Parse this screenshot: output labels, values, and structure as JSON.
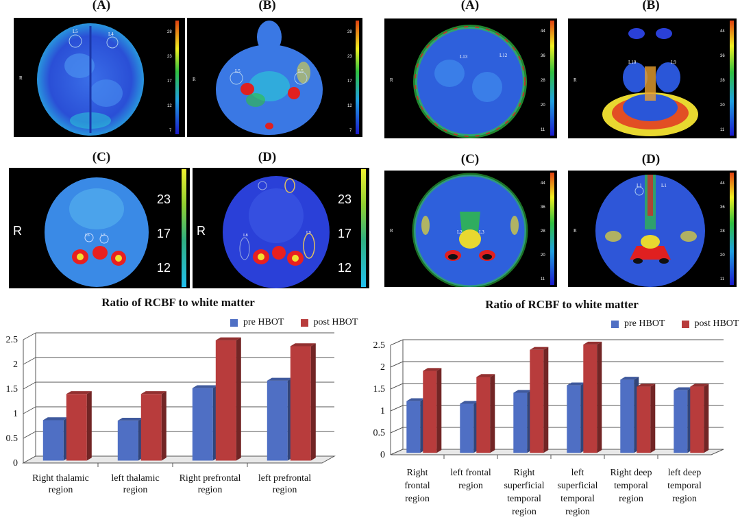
{
  "panels": {
    "left": {
      "A": "(A)",
      "B": "(B)",
      "C": "(C)",
      "D": "(D)",
      "scale_small_A": [
        "28",
        "23",
        "17",
        "12",
        "7"
      ],
      "scale_small_B": [
        "28",
        "23",
        "17",
        "12",
        "7"
      ],
      "scale_big": [
        "23",
        "17",
        "12"
      ],
      "side_letter": "R",
      "roi_labels_A": [
        "L5",
        "L4"
      ],
      "roi_labels_B": [
        "L5",
        "L5"
      ],
      "roi_labels_C": [
        "L6",
        "L7"
      ],
      "roi_labels_D": [
        "L8",
        "L9"
      ]
    },
    "right": {
      "A": "(A)",
      "B": "(B)",
      "C": "(C)",
      "D": "(D)",
      "scale": [
        "44",
        "36",
        "28",
        "20",
        "11"
      ],
      "side_letter": "R",
      "roi_labels_A": [
        "L13",
        "L12"
      ],
      "roi_labels_B": [
        "L10",
        "L9"
      ],
      "roi_labels_C": [
        "L2",
        "L3"
      ],
      "roi_labels_D": [
        "L1",
        "L1"
      ]
    }
  },
  "colors": {
    "pre": "#4f6fc4",
    "post": "#b83c3c",
    "grid": "#555555"
  },
  "chart_data": [
    {
      "type": "bar",
      "title": "Ratio of RCBF to white matter",
      "categories": [
        "Right thalamic region",
        "left thalamic region",
        "Right prefrontal region",
        "left prefrontal region"
      ],
      "category_lines": [
        [
          "Right thalamic",
          "region"
        ],
        [
          "left thalamic",
          "region"
        ],
        [
          "Right prefrontal",
          "region"
        ],
        [
          "left prefrontal",
          "region"
        ]
      ],
      "series": [
        {
          "name": "pre HBOT",
          "values": [
            0.82,
            0.81,
            1.47,
            1.62
          ]
        },
        {
          "name": "post HBOT",
          "values": [
            1.35,
            1.35,
            2.44,
            2.32
          ]
        }
      ],
      "yticks": [
        "0",
        "0.5",
        "1",
        "1.5",
        "2",
        "2.5"
      ],
      "ylim": [
        0,
        2.5
      ],
      "legend": "top-right",
      "grid": true
    },
    {
      "type": "bar",
      "title": "Ratio of RCBF to white matter",
      "categories": [
        "Right frontal region",
        "left frontal region",
        "Right superficial temporal region",
        "left superficial temporal region",
        "Right deep temporal region",
        "left deep temporal region"
      ],
      "category_lines": [
        [
          "Right",
          "frontal",
          "region"
        ],
        [
          "left frontal",
          "region"
        ],
        [
          "Right",
          "superficial",
          "temporal",
          "region"
        ],
        [
          "left",
          "superficial",
          "temporal",
          "region"
        ],
        [
          "Right deep",
          "temporal",
          "region"
        ],
        [
          "left deep",
          "temporal",
          "region"
        ]
      ],
      "series": [
        {
          "name": "pre HBOT",
          "values": [
            1.18,
            1.12,
            1.37,
            1.54,
            1.67,
            1.43
          ]
        },
        {
          "name": "post HBOT",
          "values": [
            1.87,
            1.73,
            2.35,
            2.47,
            1.51,
            1.51
          ]
        }
      ],
      "yticks": [
        "0",
        "0.5",
        "1",
        "1.5",
        "2",
        "2.5"
      ],
      "ylim": [
        0,
        2.5
      ],
      "legend": "top-right",
      "grid": true
    }
  ]
}
